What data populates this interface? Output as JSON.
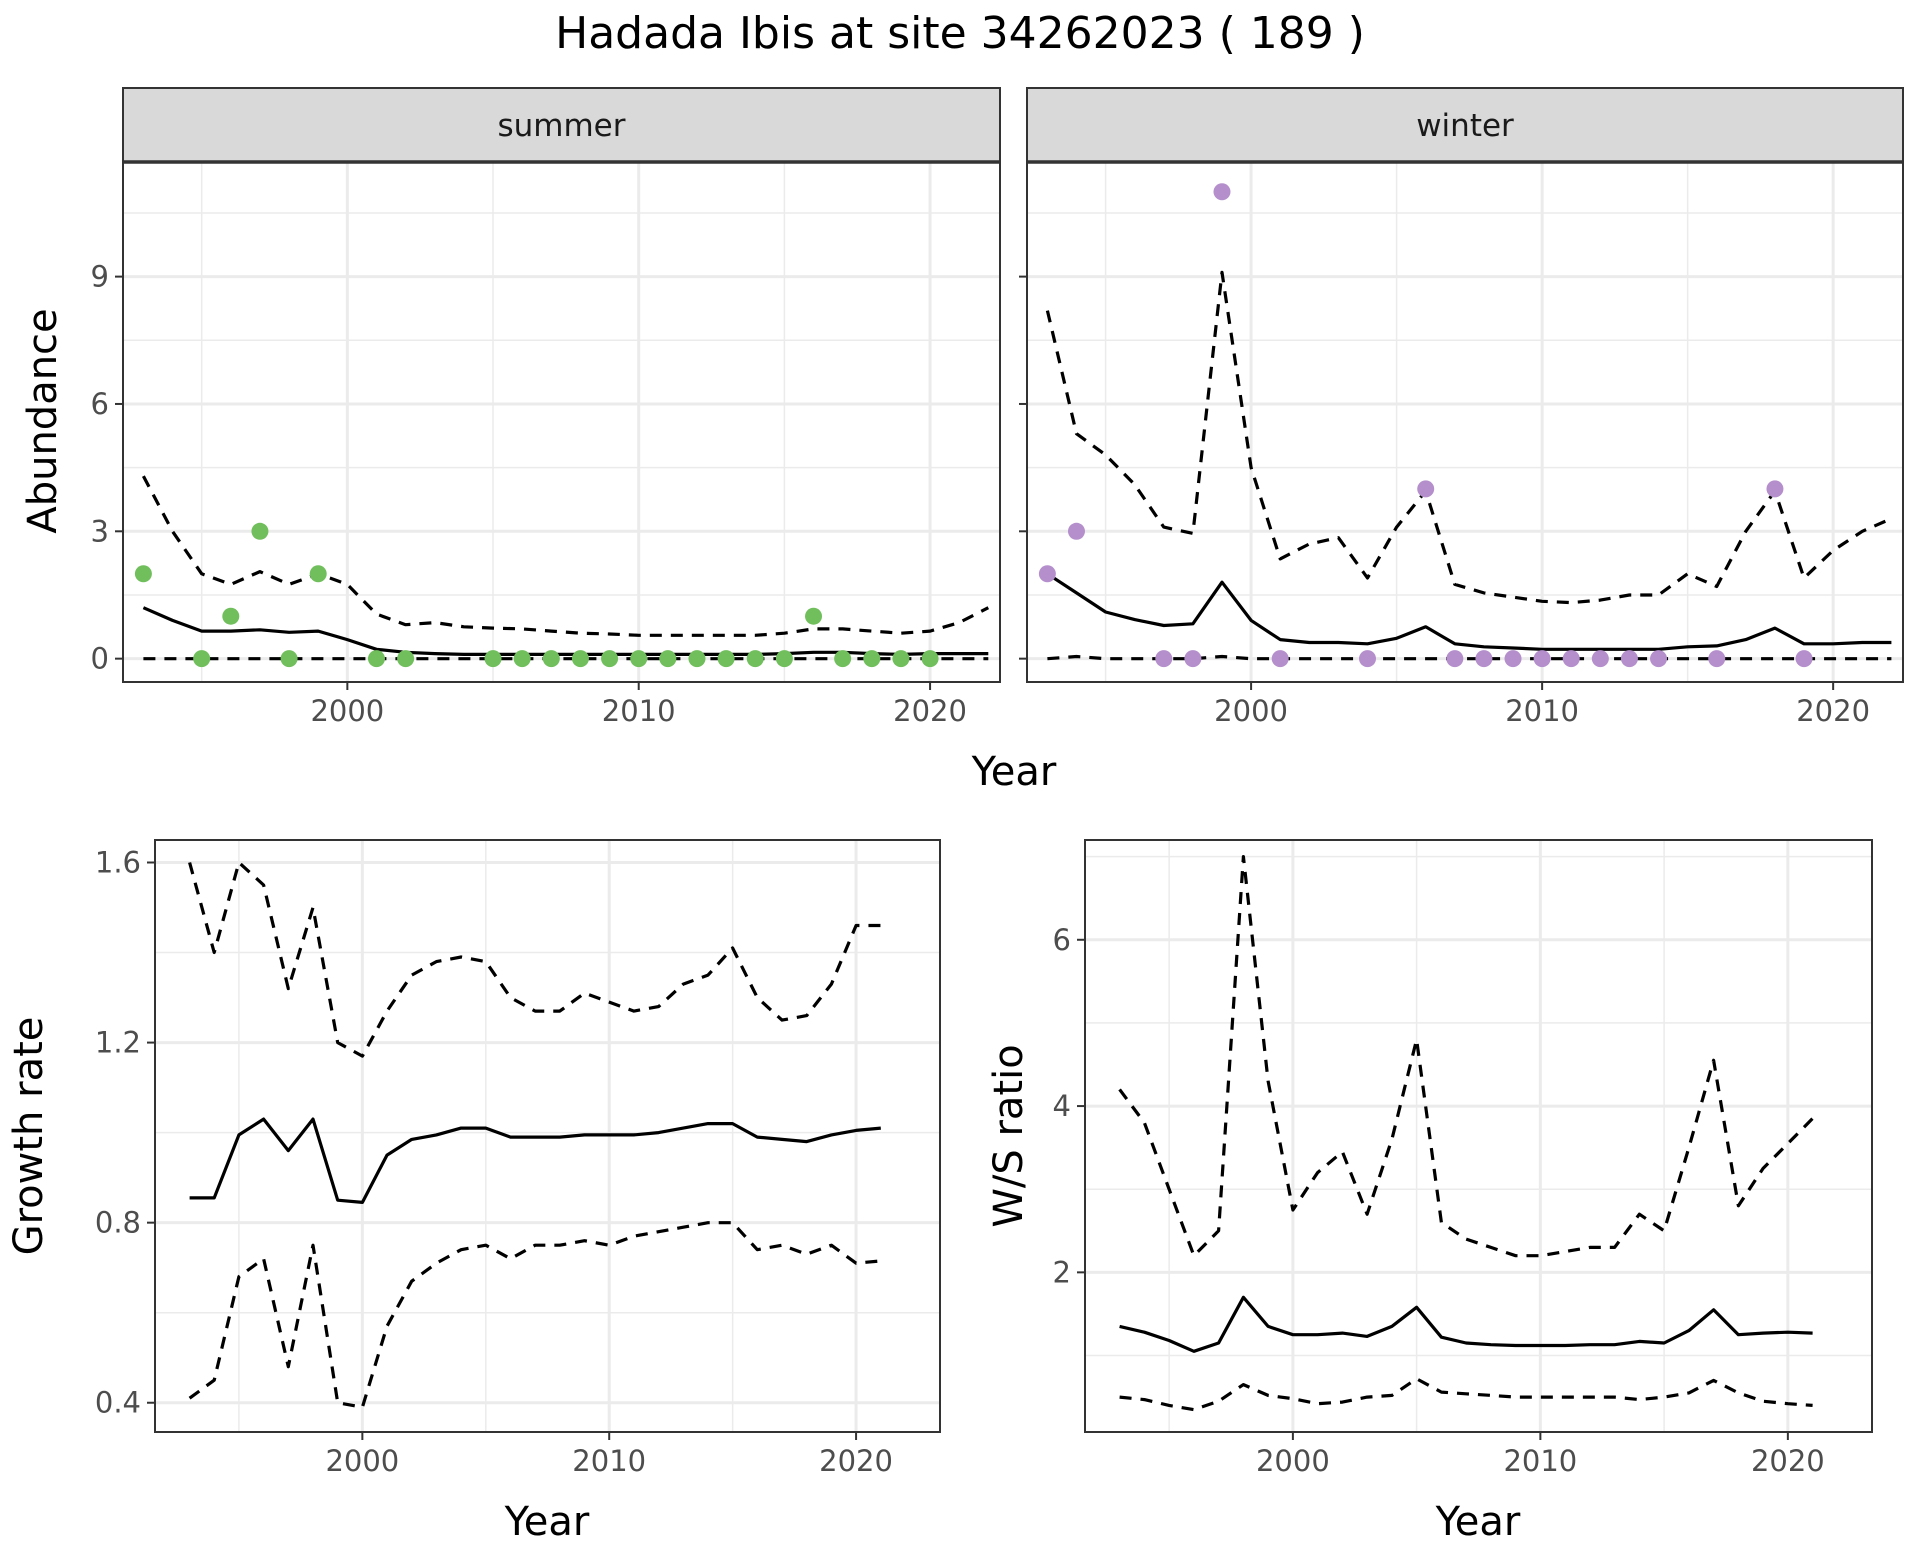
{
  "figure": {
    "title": "Hadada Ibis at site 34262023 ( 189 )"
  },
  "colors": {
    "summer_points": "#70bf5c",
    "winter_points": "#b48fcc",
    "lines": "#000000",
    "strip_fill": "#d9d9d9",
    "grid": "#ebebeb"
  },
  "chart_data": [
    {
      "type": "line",
      "panel": "summer",
      "title": "summer",
      "xlabel": "Year",
      "ylabel": "Abundance",
      "xlim": [
        1992.3,
        2022.4
      ],
      "ylim": [
        -0.55,
        11.7
      ],
      "xticks": [
        2000,
        2010,
        2020
      ],
      "yticks": [
        0,
        3,
        6,
        9
      ],
      "grid": true,
      "x": [
        1993,
        1994,
        1995,
        1996,
        1997,
        1998,
        1999,
        2000,
        2001,
        2002,
        2003,
        2004,
        2005,
        2006,
        2007,
        2008,
        2009,
        2010,
        2011,
        2012,
        2013,
        2014,
        2015,
        2016,
        2017,
        2018,
        2019,
        2020,
        2021,
        2022
      ],
      "series": [
        {
          "role": "upper",
          "style": "dashed",
          "values": [
            4.3,
            3.0,
            2.0,
            1.75,
            2.05,
            1.75,
            2.0,
            1.75,
            1.05,
            0.8,
            0.85,
            0.75,
            0.72,
            0.7,
            0.65,
            0.6,
            0.58,
            0.55,
            0.55,
            0.55,
            0.55,
            0.55,
            0.6,
            0.7,
            0.7,
            0.65,
            0.6,
            0.65,
            0.85,
            1.2
          ]
        },
        {
          "role": "mean",
          "style": "solid",
          "values": [
            1.2,
            0.9,
            0.65,
            0.65,
            0.68,
            0.62,
            0.65,
            0.45,
            0.22,
            0.15,
            0.12,
            0.1,
            0.1,
            0.1,
            0.1,
            0.1,
            0.1,
            0.1,
            0.1,
            0.1,
            0.1,
            0.1,
            0.12,
            0.15,
            0.15,
            0.12,
            0.1,
            0.12,
            0.12,
            0.12
          ]
        },
        {
          "role": "lower",
          "style": "dashed",
          "values": [
            0,
            0,
            0,
            0,
            0,
            0,
            0,
            0,
            0,
            0,
            0,
            0,
            0,
            0,
            0,
            0,
            0,
            0,
            0,
            0,
            0,
            0,
            0,
            0,
            0,
            0,
            0,
            0,
            0,
            0
          ]
        }
      ],
      "points": {
        "x": [
          1993,
          1995,
          1996,
          1997,
          1998,
          1999,
          2001,
          2002,
          2005,
          2006,
          2007,
          2008,
          2009,
          2010,
          2011,
          2012,
          2013,
          2014,
          2015,
          2016,
          2017,
          2018,
          2019,
          2020
        ],
        "y": [
          2,
          0,
          1,
          3,
          0,
          2,
          0,
          0,
          0,
          0,
          0,
          0,
          0,
          0,
          0,
          0,
          0,
          0,
          0,
          1,
          0,
          0,
          0,
          0
        ]
      }
    },
    {
      "type": "line",
      "panel": "winter",
      "title": "winter",
      "xlabel": "Year",
      "ylabel": "Abundance",
      "xlim": [
        1992.3,
        2022.4
      ],
      "ylim": [
        -0.55,
        11.7
      ],
      "xticks": [
        2000,
        2010,
        2020
      ],
      "yticks": [
        0,
        3,
        6,
        9
      ],
      "grid": true,
      "x": [
        1993,
        1994,
        1995,
        1996,
        1997,
        1998,
        1999,
        2000,
        2001,
        2002,
        2003,
        2004,
        2005,
        2006,
        2007,
        2008,
        2009,
        2010,
        2011,
        2012,
        2013,
        2014,
        2015,
        2016,
        2017,
        2018,
        2019,
        2020,
        2021,
        2022
      ],
      "series": [
        {
          "role": "upper",
          "style": "dashed",
          "values": [
            8.2,
            5.3,
            4.8,
            4.1,
            3.1,
            2.95,
            9.1,
            4.5,
            2.35,
            2.7,
            2.85,
            1.9,
            3.1,
            3.95,
            1.75,
            1.55,
            1.45,
            1.35,
            1.32,
            1.38,
            1.5,
            1.5,
            2.0,
            1.7,
            3.0,
            3.95,
            1.9,
            2.55,
            3.0,
            3.3
          ]
        },
        {
          "role": "mean",
          "style": "solid",
          "values": [
            2.0,
            1.55,
            1.1,
            0.92,
            0.78,
            0.82,
            1.8,
            0.9,
            0.45,
            0.38,
            0.38,
            0.35,
            0.48,
            0.75,
            0.35,
            0.28,
            0.25,
            0.22,
            0.22,
            0.22,
            0.22,
            0.22,
            0.28,
            0.3,
            0.45,
            0.72,
            0.35,
            0.35,
            0.38,
            0.38
          ]
        },
        {
          "role": "lower",
          "style": "dashed",
          "values": [
            0,
            0.05,
            0,
            0,
            0,
            0,
            0.05,
            0,
            0,
            0,
            0,
            0,
            0,
            0,
            0,
            0,
            0,
            0,
            0,
            0,
            0,
            0,
            0,
            0,
            0,
            0,
            0,
            0,
            0,
            0
          ]
        }
      ],
      "points": {
        "x": [
          1993,
          1994,
          1997,
          1998,
          1999,
          2001,
          2004,
          2006,
          2007,
          2008,
          2009,
          2010,
          2011,
          2012,
          2013,
          2014,
          2016,
          2018,
          2019
        ],
        "y": [
          2,
          3,
          0,
          0,
          11,
          0,
          0,
          4,
          0,
          0,
          0,
          0,
          0,
          0,
          0,
          0,
          0,
          4,
          0
        ]
      }
    },
    {
      "type": "line",
      "panel": "growth",
      "xlabel": "Year",
      "ylabel": "Growth rate",
      "xlim": [
        1991.6,
        2023.4
      ],
      "ylim": [
        0.335,
        1.65
      ],
      "xticks": [
        2000,
        2010,
        2020
      ],
      "yticks": [
        0.4,
        0.8,
        1.2,
        1.6
      ],
      "yticklabels": [
        "0.4",
        "0.8",
        "1.2",
        "1.6"
      ],
      "grid": true,
      "x": [
        1993,
        1994,
        1995,
        1996,
        1997,
        1998,
        1999,
        2000,
        2001,
        2002,
        2003,
        2004,
        2005,
        2006,
        2007,
        2008,
        2009,
        2010,
        2011,
        2012,
        2013,
        2014,
        2015,
        2016,
        2017,
        2018,
        2019,
        2020,
        2021
      ],
      "series": [
        {
          "role": "upper",
          "style": "dashed",
          "values": [
            1.6,
            1.4,
            1.6,
            1.55,
            1.32,
            1.5,
            1.2,
            1.17,
            1.27,
            1.35,
            1.38,
            1.39,
            1.38,
            1.3,
            1.27,
            1.27,
            1.31,
            1.29,
            1.27,
            1.28,
            1.33,
            1.35,
            1.41,
            1.3,
            1.25,
            1.26,
            1.33,
            1.46,
            1.46
          ]
        },
        {
          "role": "mean",
          "style": "solid",
          "values": [
            0.855,
            0.855,
            0.995,
            1.03,
            0.96,
            1.03,
            0.85,
            0.845,
            0.95,
            0.985,
            0.995,
            1.01,
            1.01,
            0.99,
            0.99,
            0.99,
            0.995,
            0.995,
            0.995,
            1.0,
            1.01,
            1.02,
            1.02,
            0.99,
            0.985,
            0.98,
            0.995,
            1.005,
            1.01
          ]
        },
        {
          "role": "lower",
          "style": "dashed",
          "values": [
            0.41,
            0.45,
            0.68,
            0.72,
            0.48,
            0.75,
            0.4,
            0.39,
            0.57,
            0.67,
            0.71,
            0.74,
            0.75,
            0.72,
            0.75,
            0.75,
            0.76,
            0.75,
            0.77,
            0.78,
            0.79,
            0.8,
            0.8,
            0.74,
            0.75,
            0.73,
            0.75,
            0.71,
            0.715
          ]
        }
      ]
    },
    {
      "type": "line",
      "panel": "ratio",
      "xlabel": "Year",
      "ylabel": "W/S ratio",
      "xlim": [
        1991.6,
        2023.4
      ],
      "ylim": [
        0.08,
        7.2
      ],
      "xticks": [
        2000,
        2010,
        2020
      ],
      "yticks": [
        2,
        4,
        6
      ],
      "grid": true,
      "x": [
        1993,
        1994,
        1995,
        1996,
        1997,
        1998,
        1999,
        2000,
        2001,
        2002,
        2003,
        2004,
        2005,
        2006,
        2007,
        2008,
        2009,
        2010,
        2011,
        2012,
        2013,
        2014,
        2015,
        2016,
        2017,
        2018,
        2019,
        2020,
        2021
      ],
      "series": [
        {
          "role": "upper",
          "style": "dashed",
          "values": [
            4.2,
            3.8,
            3.0,
            2.2,
            2.5,
            7.0,
            4.3,
            2.75,
            3.2,
            3.45,
            2.7,
            3.6,
            4.8,
            2.6,
            2.4,
            2.3,
            2.2,
            2.2,
            2.25,
            2.3,
            2.3,
            2.7,
            2.5,
            3.5,
            4.55,
            2.8,
            3.25,
            3.55,
            3.85
          ]
        },
        {
          "role": "mean",
          "style": "solid",
          "values": [
            1.35,
            1.28,
            1.18,
            1.05,
            1.15,
            1.7,
            1.35,
            1.25,
            1.25,
            1.27,
            1.23,
            1.35,
            1.58,
            1.22,
            1.15,
            1.13,
            1.12,
            1.12,
            1.12,
            1.13,
            1.13,
            1.17,
            1.15,
            1.3,
            1.55,
            1.25,
            1.27,
            1.28,
            1.27
          ]
        },
        {
          "role": "lower",
          "style": "dashed",
          "values": [
            0.5,
            0.47,
            0.4,
            0.35,
            0.45,
            0.65,
            0.52,
            0.48,
            0.42,
            0.44,
            0.5,
            0.52,
            0.72,
            0.56,
            0.54,
            0.52,
            0.5,
            0.5,
            0.5,
            0.5,
            0.5,
            0.47,
            0.5,
            0.55,
            0.7,
            0.55,
            0.45,
            0.42,
            0.4
          ]
        }
      ]
    }
  ]
}
